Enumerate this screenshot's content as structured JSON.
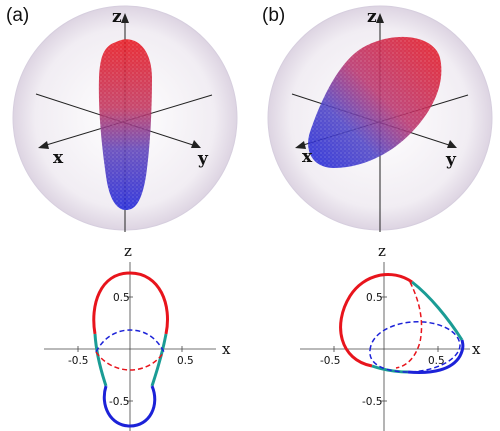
{
  "panels": [
    {
      "label": "(a)",
      "axes": {
        "x": "x",
        "y": "y",
        "z": "z"
      }
    },
    {
      "label": "(b)",
      "axes": {
        "x": "x",
        "y": "y",
        "z": "z"
      }
    }
  ],
  "plots": [
    {
      "axes": {
        "x": "x",
        "z": "z"
      },
      "ticks": {
        "x_neg": "-0.5",
        "x_pos": "0.5",
        "z_pos": "0.5",
        "z_neg": "-0.5"
      }
    },
    {
      "axes": {
        "x": "x",
        "z": "z"
      },
      "ticks": {
        "x_neg": "-0.5",
        "x_pos": "0.5",
        "z_pos": "0.5",
        "z_neg": "-0.5"
      }
    }
  ],
  "colors": {
    "red": "#e8141c",
    "blue": "#1c22d8",
    "teal": "#1a9c95",
    "sphere": "#ece6f0",
    "axis": "#222222"
  }
}
